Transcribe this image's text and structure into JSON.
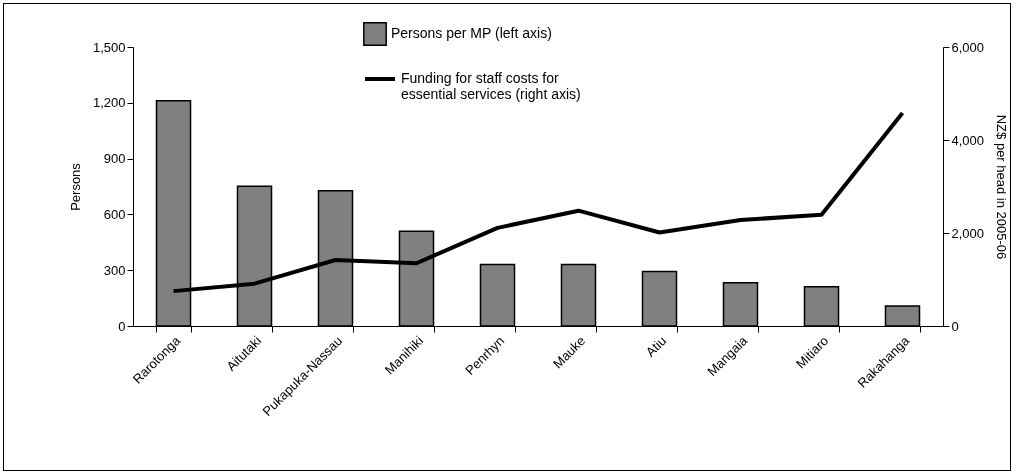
{
  "chart_data": {
    "type": "bar",
    "ylabel": "Persons",
    "y2label": "NZ$ per head in 2005-06",
    "categories": [
      "Rarotonga",
      "Aitutaki",
      "Pukapuka-Nassau",
      "Manihiki",
      "Penrhyn",
      "Mauke",
      "Atiu",
      "Mangaia",
      "Mitiaro",
      "Rakahanga"
    ],
    "series": [
      {
        "name": "Persons per MP (left axis)",
        "color": "#808080",
        "values": [
          1211,
          751,
          727,
          509,
          331,
          331,
          293,
          233,
          211,
          107
        ]
      },
      {
        "name": "Funding for staff costs for essential services (right axis)",
        "type": "line",
        "axis": "y2",
        "color": "#000000",
        "values": [
          750,
          910,
          1420,
          1350,
          2110,
          2480,
          2010,
          2280,
          2390,
          4580
        ]
      }
    ],
    "ylim": [
      0,
      1500
    ],
    "yticks": [
      {
        "value": 0,
        "label": "0"
      },
      {
        "value": 300,
        "label": "300"
      },
      {
        "value": 600,
        "label": "600"
      },
      {
        "value": 900,
        "label": "900"
      },
      {
        "value": 1200,
        "label": "1,200"
      },
      {
        "value": 1500,
        "label": "1,500"
      }
    ],
    "y2lim": [
      0,
      6000
    ],
    "y2ticks": [
      {
        "value": 0,
        "label": "0"
      },
      {
        "value": 2000,
        "label": "2,000"
      },
      {
        "value": 4000,
        "label": "4,000"
      },
      {
        "value": 6000,
        "label": "6,000"
      }
    ],
    "grid": false,
    "legend": "top",
    "marker": "none",
    "line_style": "solid"
  }
}
